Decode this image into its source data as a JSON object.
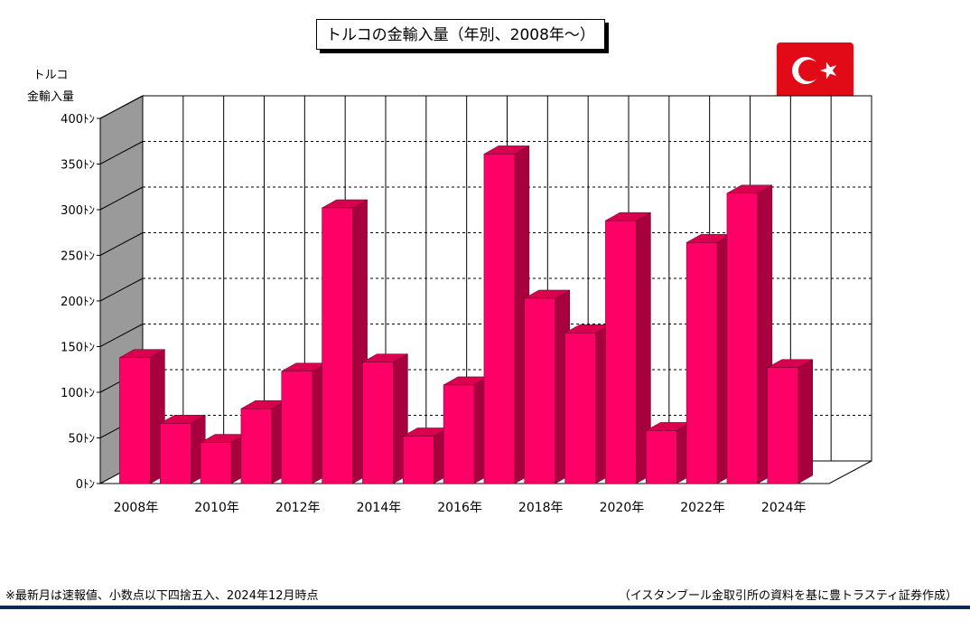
{
  "title": "トルコの金輸入量（年別、2008年〜）",
  "ylabel_line1": "トルコ",
  "ylabel_line2": "金輸入量",
  "flag_icon": "turkey-flag-icon",
  "colors": {
    "bar_front": "#ff0066",
    "bar_side": "#a8003f",
    "bar_top": "#d9004f",
    "back_wall": "#ffffff",
    "left_wall": "#9a9a9a",
    "flag_red": "#e30a17",
    "rule": "#0e2a57"
  },
  "chart_data": {
    "type": "bar",
    "ylim": [
      0,
      400
    ],
    "y_ticks": [
      0,
      50,
      100,
      150,
      200,
      250,
      300,
      350,
      400
    ],
    "y_tick_suffix": "ﾄﾝ",
    "x_labels": [
      "2008年",
      "2010年",
      "2012年",
      "2014年",
      "2016年",
      "2018年",
      "2020年",
      "2022年",
      "2024年"
    ],
    "categories": [
      "2008",
      "2009",
      "2010",
      "2011",
      "2012",
      "2013",
      "2014",
      "2015",
      "2016",
      "2017",
      "2018",
      "2019",
      "2020",
      "2021",
      "2022",
      "2023",
      "2024"
    ],
    "values": [
      138,
      66,
      45,
      82,
      123,
      302,
      133,
      52,
      108,
      361,
      203,
      165,
      288,
      58,
      264,
      318,
      127
    ],
    "grid": true,
    "grid_style": "dashed horizontal",
    "three_d": true
  },
  "footnote": "※最新月は速報値、小数点以下四捨五入、2024年12月時点",
  "source": "（イスタンブール金取引所の資料を基に豊トラスティ証券作成）"
}
